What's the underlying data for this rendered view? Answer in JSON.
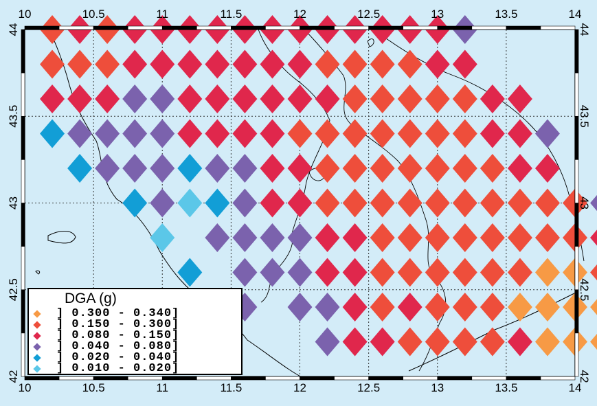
{
  "map": {
    "lon_range": [
      10,
      14
    ],
    "lat_range": [
      42,
      44
    ],
    "lon_ticks": [
      "10",
      "10.5",
      "11",
      "11.5",
      "12",
      "12.5",
      "13",
      "13.5",
      "14"
    ],
    "lat_ticks": [
      "42",
      "42.5",
      "43",
      "43.5",
      "44"
    ],
    "grid_step": 0.2,
    "background_color": "#d3ecf8",
    "colors": {
      "A": "#f79a45",
      "B": "#ee4e3b",
      "C": "#e0274c",
      "D": "#7b62ad",
      "E": "#129ed6",
      "F": "#5bc7e8"
    },
    "rows": [
      {
        "lat": 44.0,
        "cells": "BCBCCCCCCCCCCCCD.."
      },
      {
        "lat": 43.8,
        "cells": "BBBCCCCCCCBBBBCC..."
      },
      {
        "lat": 43.6,
        "cells": "CCCDDCCCCCCBBBBBCC.."
      },
      {
        "lat": 43.4,
        "cells": "EDDDDCCCCBBBBBBBCCD."
      },
      {
        "lat": 43.2,
        "cells": ".EDDDEDDCCBBBBBBBCC."
      },
      {
        "lat": 43.0,
        "cells": "...EDFEDCCBBBBBBBBBBD"
      },
      {
        "lat": 42.8,
        "cells": "....F.DDDDCCBBBBBBBBC"
      },
      {
        "lat": 42.6,
        "cells": ".....E.DDDCCBBBBBBAAB"
      },
      {
        "lat": 42.4,
        "cells": ".......D.DDCBCBBBAAAAA"
      },
      {
        "lat": 42.2,
        "cells": "..........DCCBBBBCAAAA"
      }
    ]
  },
  "legend": {
    "title": "DGA (g)",
    "entries": [
      {
        "label": "] 0.300 - 0.340]",
        "color": "#f79a45"
      },
      {
        "label": "] 0.150 - 0.300]",
        "color": "#ee4e3b"
      },
      {
        "label": "] 0.080 - 0.150]",
        "color": "#e0274c"
      },
      {
        "label": "] 0.040 - 0.080]",
        "color": "#7b62ad"
      },
      {
        "label": "] 0.020 - 0.040]",
        "color": "#129ed6"
      },
      {
        "label": "] 0.010 - 0.020]",
        "color": "#5bc7e8"
      }
    ]
  }
}
